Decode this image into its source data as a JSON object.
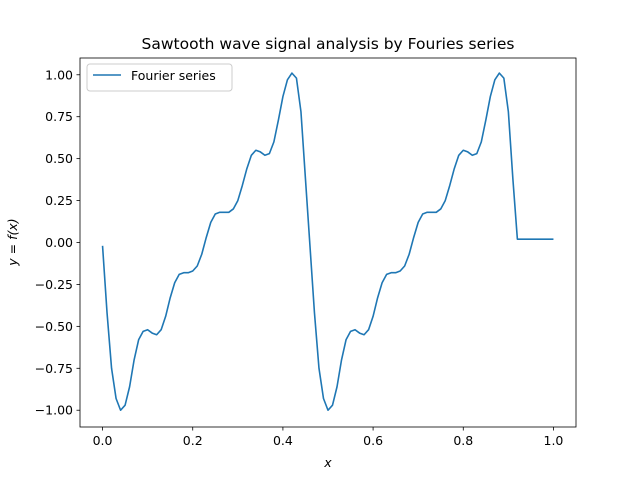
{
  "chart_data": {
    "type": "line",
    "title": "Sawtooth wave signal analysis by Fouries series",
    "xlabel": "x",
    "ylabel": "y = f(x)",
    "xlim": [
      -0.05,
      1.05
    ],
    "ylim": [
      -1.1,
      1.1
    ],
    "xticks": [
      0.0,
      0.2,
      0.4,
      0.6,
      0.8,
      1.0
    ],
    "xtick_labels": [
      "0.0",
      "0.2",
      "0.4",
      "0.6",
      "0.8",
      "1.0"
    ],
    "yticks": [
      -1.0,
      -0.75,
      -0.5,
      -0.25,
      0.0,
      0.25,
      0.5,
      0.75,
      1.0
    ],
    "ytick_labels": [
      "−1.00",
      "−0.75",
      "−0.50",
      "−0.25",
      "0.00",
      "0.25",
      "0.50",
      "0.75",
      "1.00"
    ],
    "grid": false,
    "legend_position": "top-left",
    "series": [
      {
        "name": "Fourier series",
        "color": "#1f77b4",
        "x": [
          0.0,
          0.01,
          0.02,
          0.03,
          0.04,
          0.05,
          0.06,
          0.07,
          0.08,
          0.09,
          0.1,
          0.11,
          0.12,
          0.13,
          0.14,
          0.15,
          0.16,
          0.17,
          0.18,
          0.19,
          0.2,
          0.21,
          0.22,
          0.23,
          0.24,
          0.25,
          0.26,
          0.27,
          0.28,
          0.29,
          0.3,
          0.31,
          0.32,
          0.33,
          0.34,
          0.35,
          0.36,
          0.37,
          0.38,
          0.39,
          0.4,
          0.41,
          0.42,
          0.43,
          0.44,
          0.45,
          0.46,
          0.47,
          0.48,
          0.49,
          0.5,
          0.51,
          0.52,
          0.53,
          0.54,
          0.55,
          0.56,
          0.57,
          0.58,
          0.59,
          0.6,
          0.61,
          0.62,
          0.63,
          0.64,
          0.65,
          0.66,
          0.67,
          0.68,
          0.69,
          0.7,
          0.71,
          0.72,
          0.73,
          0.74,
          0.75,
          0.76,
          0.77,
          0.78,
          0.79,
          0.8,
          0.81,
          0.82,
          0.83,
          0.84,
          0.85,
          0.86,
          0.87,
          0.88,
          0.89,
          0.9,
          0.91,
          0.92,
          0.93,
          0.94,
          0.95,
          0.96,
          0.97,
          0.98,
          0.99,
          1.0
        ],
        "y": [
          -0.02,
          -0.42,
          -0.75,
          -0.93,
          -1.0,
          -0.97,
          -0.86,
          -0.7,
          -0.58,
          -0.53,
          -0.52,
          -0.54,
          -0.55,
          -0.52,
          -0.44,
          -0.33,
          -0.24,
          -0.19,
          -0.18,
          -0.18,
          -0.17,
          -0.14,
          -0.07,
          0.03,
          0.12,
          0.17,
          0.18,
          0.18,
          0.18,
          0.2,
          0.25,
          0.34,
          0.44,
          0.52,
          0.55,
          0.54,
          0.52,
          0.53,
          0.6,
          0.73,
          0.87,
          0.97,
          1.01,
          0.98,
          0.78,
          0.38,
          -0.02,
          -0.42,
          -0.75,
          -0.93,
          -1.0,
          -0.97,
          -0.86,
          -0.7,
          -0.58,
          -0.53,
          -0.52,
          -0.54,
          -0.55,
          -0.52,
          -0.44,
          -0.33,
          -0.24,
          -0.19,
          -0.18,
          -0.18,
          -0.17,
          -0.14,
          -0.07,
          0.03,
          0.12,
          0.17,
          0.18,
          0.18,
          0.18,
          0.2,
          0.25,
          0.34,
          0.44,
          0.52,
          0.55,
          0.54,
          0.52,
          0.53,
          0.6,
          0.73,
          0.87,
          0.97,
          1.01,
          0.98,
          0.78,
          0.38,
          0.02,
          0.02,
          0.02,
          0.02,
          0.02,
          0.02,
          0.02,
          0.02,
          0.02
        ]
      }
    ]
  }
}
